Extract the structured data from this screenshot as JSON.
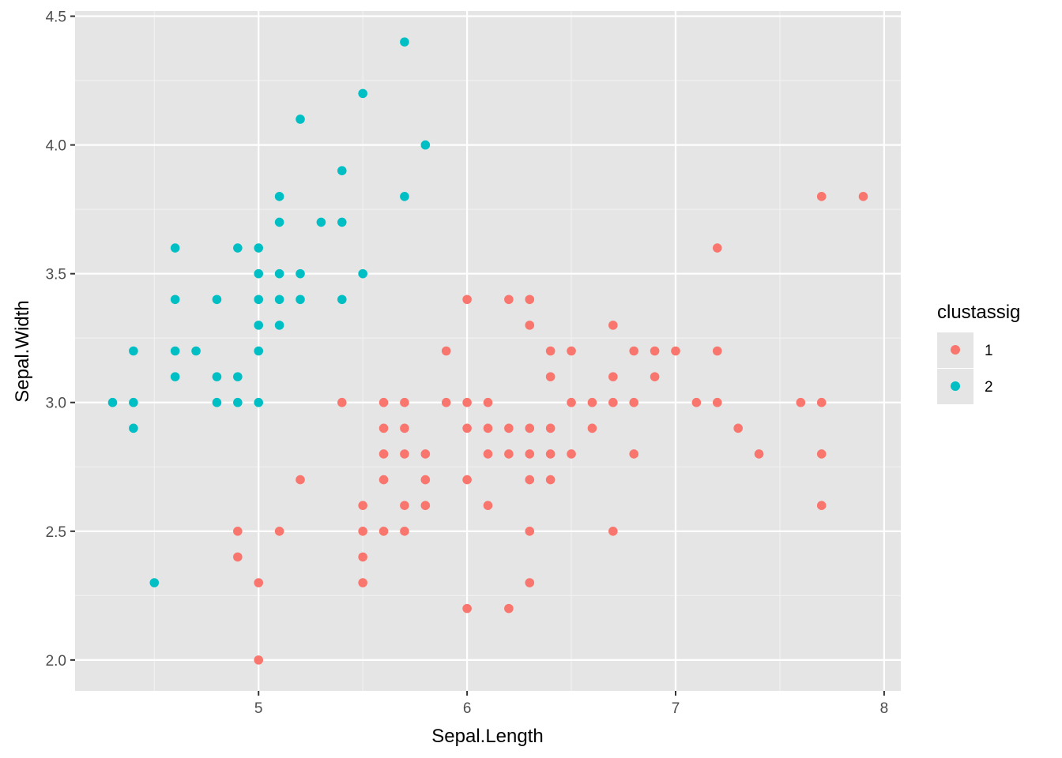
{
  "chart_data": {
    "type": "scatter",
    "title": "",
    "xlabel": "Sepal.Length",
    "ylabel": "Sepal.Width",
    "xlim": [
      4.12,
      8.08
    ],
    "ylim": [
      1.88,
      4.52
    ],
    "x_ticks": [
      "5",
      "6",
      "7",
      "8"
    ],
    "y_ticks": [
      "2.0",
      "2.5",
      "3.0",
      "3.5",
      "4.0",
      "4.5"
    ],
    "grid": true,
    "background": "#E5E5E5",
    "legend": {
      "title": "clustassig",
      "position": "right",
      "entries": [
        "1",
        "2"
      ]
    },
    "series": [
      {
        "name": "1",
        "color": "#F8766D",
        "points": [
          [
            4.9,
            2.5
          ],
          [
            4.9,
            2.4
          ],
          [
            5.0,
            2.3
          ],
          [
            5.0,
            2.0
          ],
          [
            5.1,
            2.5
          ],
          [
            5.2,
            2.7
          ],
          [
            5.4,
            3.0
          ],
          [
            5.5,
            2.6
          ],
          [
            5.5,
            2.5
          ],
          [
            5.5,
            2.4
          ],
          [
            5.5,
            2.3
          ],
          [
            5.6,
            3.0
          ],
          [
            5.6,
            2.9
          ],
          [
            5.6,
            2.8
          ],
          [
            5.6,
            2.7
          ],
          [
            5.6,
            2.5
          ],
          [
            5.7,
            3.0
          ],
          [
            5.7,
            2.9
          ],
          [
            5.7,
            2.8
          ],
          [
            5.7,
            2.6
          ],
          [
            5.7,
            2.5
          ],
          [
            5.8,
            2.8
          ],
          [
            5.8,
            2.7
          ],
          [
            5.8,
            2.6
          ],
          [
            5.9,
            3.2
          ],
          [
            5.9,
            3.0
          ],
          [
            6.0,
            3.4
          ],
          [
            6.0,
            3.0
          ],
          [
            6.0,
            2.9
          ],
          [
            6.0,
            2.7
          ],
          [
            6.0,
            2.2
          ],
          [
            6.1,
            3.0
          ],
          [
            6.1,
            2.9
          ],
          [
            6.1,
            2.8
          ],
          [
            6.1,
            2.6
          ],
          [
            6.2,
            3.4
          ],
          [
            6.2,
            2.9
          ],
          [
            6.2,
            2.8
          ],
          [
            6.2,
            2.2
          ],
          [
            6.3,
            3.4
          ],
          [
            6.3,
            3.3
          ],
          [
            6.3,
            2.9
          ],
          [
            6.3,
            2.8
          ],
          [
            6.3,
            2.7
          ],
          [
            6.3,
            2.5
          ],
          [
            6.3,
            2.3
          ],
          [
            6.4,
            3.2
          ],
          [
            6.4,
            3.1
          ],
          [
            6.4,
            2.9
          ],
          [
            6.4,
            2.8
          ],
          [
            6.4,
            2.7
          ],
          [
            6.5,
            3.2
          ],
          [
            6.5,
            3.0
          ],
          [
            6.5,
            2.8
          ],
          [
            6.6,
            3.0
          ],
          [
            6.6,
            2.9
          ],
          [
            6.7,
            3.3
          ],
          [
            6.7,
            3.1
          ],
          [
            6.7,
            3.0
          ],
          [
            6.7,
            2.5
          ],
          [
            6.8,
            3.2
          ],
          [
            6.8,
            3.0
          ],
          [
            6.8,
            2.8
          ],
          [
            6.9,
            3.2
          ],
          [
            6.9,
            3.1
          ],
          [
            7.0,
            3.2
          ],
          [
            7.1,
            3.0
          ],
          [
            7.2,
            3.6
          ],
          [
            7.2,
            3.2
          ],
          [
            7.2,
            3.0
          ],
          [
            7.3,
            2.9
          ],
          [
            7.4,
            2.8
          ],
          [
            7.6,
            3.0
          ],
          [
            7.7,
            3.8
          ],
          [
            7.7,
            3.0
          ],
          [
            7.7,
            2.8
          ],
          [
            7.7,
            2.6
          ],
          [
            7.9,
            3.8
          ]
        ]
      },
      {
        "name": "2",
        "color": "#00BFC4",
        "points": [
          [
            4.3,
            3.0
          ],
          [
            4.4,
            3.2
          ],
          [
            4.4,
            3.0
          ],
          [
            4.4,
            2.9
          ],
          [
            4.5,
            2.3
          ],
          [
            4.6,
            3.6
          ],
          [
            4.6,
            3.4
          ],
          [
            4.6,
            3.2
          ],
          [
            4.6,
            3.1
          ],
          [
            4.7,
            3.2
          ],
          [
            4.8,
            3.4
          ],
          [
            4.8,
            3.1
          ],
          [
            4.8,
            3.0
          ],
          [
            4.9,
            3.6
          ],
          [
            4.9,
            3.1
          ],
          [
            4.9,
            3.0
          ],
          [
            5.0,
            3.6
          ],
          [
            5.0,
            3.5
          ],
          [
            5.0,
            3.4
          ],
          [
            5.0,
            3.3
          ],
          [
            5.0,
            3.2
          ],
          [
            5.0,
            3.0
          ],
          [
            5.1,
            3.8
          ],
          [
            5.1,
            3.7
          ],
          [
            5.1,
            3.5
          ],
          [
            5.1,
            3.4
          ],
          [
            5.1,
            3.3
          ],
          [
            5.2,
            4.1
          ],
          [
            5.2,
            3.5
          ],
          [
            5.2,
            3.4
          ],
          [
            5.3,
            3.7
          ],
          [
            5.4,
            3.9
          ],
          [
            5.4,
            3.7
          ],
          [
            5.4,
            3.4
          ],
          [
            5.5,
            4.2
          ],
          [
            5.5,
            3.5
          ],
          [
            5.7,
            4.4
          ],
          [
            5.7,
            3.8
          ],
          [
            5.8,
            4.0
          ]
        ]
      }
    ]
  }
}
